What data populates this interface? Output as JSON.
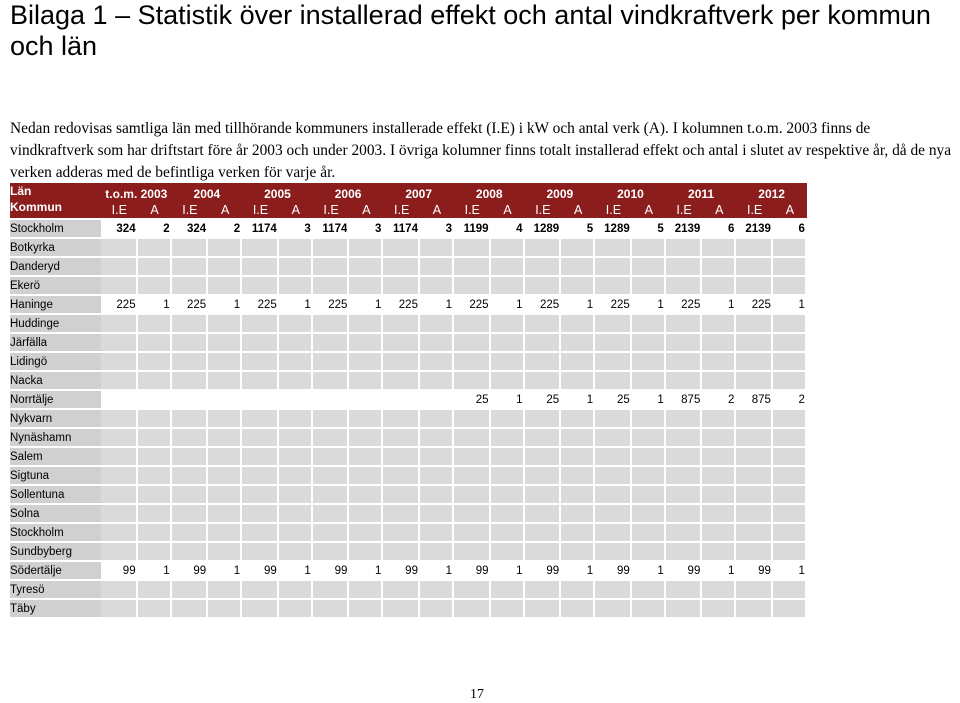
{
  "title": "Bilaga 1 – Statistik över installerad effekt och antal vindkraftverk per kommun och län",
  "intro": "Nedan redovisas samtliga län med tillhörande kommuners installerade effekt (I.E) i kW och antal verk (A). I kolumnen t.o.m. 2003 finns de vindkraftverk som har driftstart före år 2003 och under 2003. I övriga kolumner finns totalt installerad effekt och antal i slutet av respektive år, då de nya verken adderas med de befintliga verken för varje år.",
  "table": {
    "header_lan": "Län",
    "header_kommun": "Kommun",
    "years": [
      "t.o.m. 2003",
      "2004",
      "2005",
      "2006",
      "2007",
      "2008",
      "2009",
      "2010",
      "2011",
      "2012"
    ],
    "sub_ie": "I.E",
    "sub_a": "A",
    "rows": [
      {
        "name": "Stockholm",
        "bold": true,
        "values": [
          "324",
          "2",
          "324",
          "2",
          "1174",
          "3",
          "1174",
          "3",
          "1174",
          "3",
          "1199",
          "4",
          "1289",
          "5",
          "1289",
          "5",
          "2139",
          "6",
          "2139",
          "6"
        ]
      },
      {
        "name": "Botkyrka",
        "values": [
          "",
          "",
          "",
          "",
          "",
          "",
          "",
          "",
          "",
          "",
          "",
          "",
          "",
          "",
          "",
          "",
          "",
          "",
          "",
          ""
        ]
      },
      {
        "name": "Danderyd",
        "values": [
          "",
          "",
          "",
          "",
          "",
          "",
          "",
          "",
          "",
          "",
          "",
          "",
          "",
          "",
          "",
          "",
          "",
          "",
          "",
          ""
        ]
      },
      {
        "name": "Ekerö",
        "values": [
          "",
          "",
          "",
          "",
          "",
          "",
          "",
          "",
          "",
          "",
          "",
          "",
          "",
          "",
          "",
          "",
          "",
          "",
          "",
          ""
        ]
      },
      {
        "name": "Haninge",
        "values": [
          "225",
          "1",
          "225",
          "1",
          "225",
          "1",
          "225",
          "1",
          "225",
          "1",
          "225",
          "1",
          "225",
          "1",
          "225",
          "1",
          "225",
          "1",
          "225",
          "1"
        ]
      },
      {
        "name": "Huddinge",
        "values": [
          "",
          "",
          "",
          "",
          "",
          "",
          "",
          "",
          "",
          "",
          "",
          "",
          "",
          "",
          "",
          "",
          "",
          "",
          "",
          ""
        ]
      },
      {
        "name": "Järfälla",
        "values": [
          "",
          "",
          "",
          "",
          "",
          "",
          "",
          "",
          "",
          "",
          "",
          "",
          "",
          "",
          "",
          "",
          "",
          "",
          "",
          ""
        ]
      },
      {
        "name": "Lidingö",
        "values": [
          "",
          "",
          "",
          "",
          "",
          "",
          "",
          "",
          "",
          "",
          "",
          "",
          "",
          "",
          "",
          "",
          "",
          "",
          "",
          ""
        ]
      },
      {
        "name": "Nacka",
        "values": [
          "",
          "",
          "",
          "",
          "",
          "",
          "",
          "",
          "",
          "",
          "",
          "",
          "",
          "",
          "",
          "",
          "",
          "",
          "",
          ""
        ]
      },
      {
        "name": "Norrtälje",
        "values": [
          "",
          "",
          "",
          "",
          "",
          "",
          "",
          "",
          "",
          "",
          "25",
          "1",
          "25",
          "1",
          "25",
          "1",
          "875",
          "2",
          "875",
          "2"
        ]
      },
      {
        "name": "Nykvarn",
        "values": [
          "",
          "",
          "",
          "",
          "",
          "",
          "",
          "",
          "",
          "",
          "",
          "",
          "",
          "",
          "",
          "",
          "",
          "",
          "",
          ""
        ]
      },
      {
        "name": "Nynäshamn",
        "values": [
          "",
          "",
          "",
          "",
          "",
          "",
          "",
          "",
          "",
          "",
          "",
          "",
          "",
          "",
          "",
          "",
          "",
          "",
          "",
          ""
        ]
      },
      {
        "name": "Salem",
        "values": [
          "",
          "",
          "",
          "",
          "",
          "",
          "",
          "",
          "",
          "",
          "",
          "",
          "",
          "",
          "",
          "",
          "",
          "",
          "",
          ""
        ]
      },
      {
        "name": "Sigtuna",
        "values": [
          "",
          "",
          "",
          "",
          "",
          "",
          "",
          "",
          "",
          "",
          "",
          "",
          "",
          "",
          "",
          "",
          "",
          "",
          "",
          ""
        ]
      },
      {
        "name": "Sollentuna",
        "values": [
          "",
          "",
          "",
          "",
          "",
          "",
          "",
          "",
          "",
          "",
          "",
          "",
          "",
          "",
          "",
          "",
          "",
          "",
          "",
          ""
        ]
      },
      {
        "name": "Solna",
        "values": [
          "",
          "",
          "",
          "",
          "",
          "",
          "",
          "",
          "",
          "",
          "",
          "",
          "",
          "",
          "",
          "",
          "",
          "",
          "",
          ""
        ]
      },
      {
        "name": "Stockholm",
        "values": [
          "",
          "",
          "",
          "",
          "",
          "",
          "",
          "",
          "",
          "",
          "",
          "",
          "",
          "",
          "",
          "",
          "",
          "",
          "",
          ""
        ]
      },
      {
        "name": "Sundbyberg",
        "values": [
          "",
          "",
          "",
          "",
          "",
          "",
          "",
          "",
          "",
          "",
          "",
          "",
          "",
          "",
          "",
          "",
          "",
          "",
          "",
          ""
        ]
      },
      {
        "name": "Södertälje",
        "values": [
          "99",
          "1",
          "99",
          "1",
          "99",
          "1",
          "99",
          "1",
          "99",
          "1",
          "99",
          "1",
          "99",
          "1",
          "99",
          "1",
          "99",
          "1",
          "99",
          "1"
        ]
      },
      {
        "name": "Tyresö",
        "values": [
          "",
          "",
          "",
          "",
          "",
          "",
          "",
          "",
          "",
          "",
          "",
          "",
          "",
          "",
          "",
          "",
          "",
          "",
          "",
          ""
        ]
      },
      {
        "name": "Täby",
        "values": [
          "",
          "",
          "",
          "",
          "",
          "",
          "",
          "",
          "",
          "",
          "",
          "",
          "",
          "",
          "",
          "",
          "",
          "",
          "",
          ""
        ]
      }
    ]
  },
  "page_number": "17",
  "colors": {
    "header_bg": "#8b1d1d",
    "cell_bg": "#dadada",
    "name_bg": "#d0d0d0"
  }
}
